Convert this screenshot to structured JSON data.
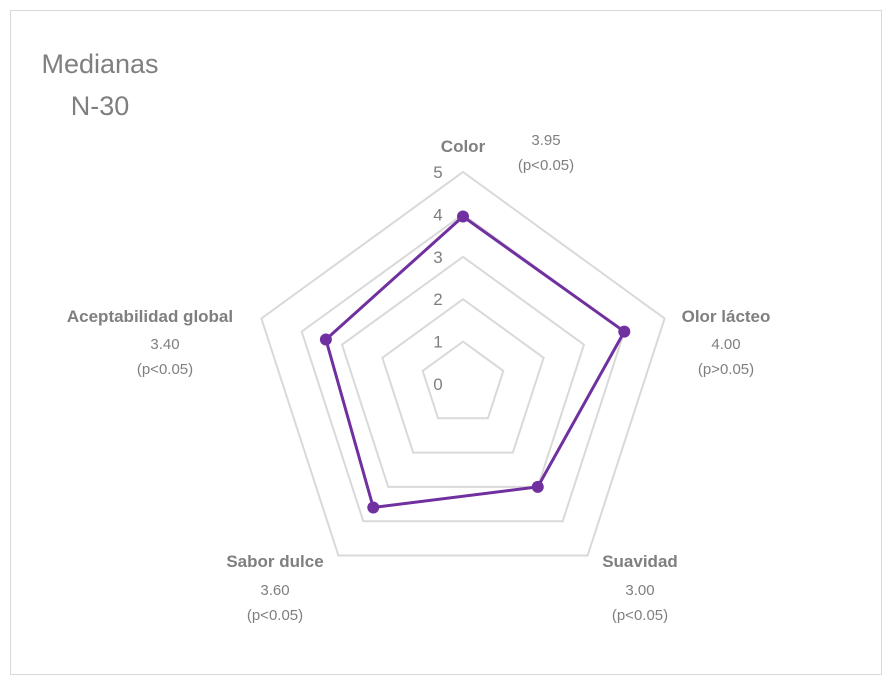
{
  "chart_data": {
    "type": "radar",
    "title": [
      "Medianas",
      "N-30"
    ],
    "categories": [
      "Color",
      "Olor lácteo",
      "Suavidad",
      "Sabor dulce",
      "Aceptabilidad global"
    ],
    "values": [
      3.95,
      4.0,
      3.0,
      3.6,
      3.4
    ],
    "annotations": [
      {
        "value": "3.95",
        "p": "(p<0.05)"
      },
      {
        "value": "4.00",
        "p": "(p>0.05)"
      },
      {
        "value": "3.00",
        "p": "(p<0.05)"
      },
      {
        "value": "3.60",
        "p": "(p<0.05)"
      },
      {
        "value": "3.40",
        "p": "(p<0.05)"
      }
    ],
    "rlim": [
      0,
      5
    ],
    "ticks": [
      "0",
      "1",
      "2",
      "3",
      "4",
      "5"
    ],
    "grid": true,
    "legend": "none",
    "series_color": "#7030a0",
    "grid_color": "#d9d9d9"
  }
}
